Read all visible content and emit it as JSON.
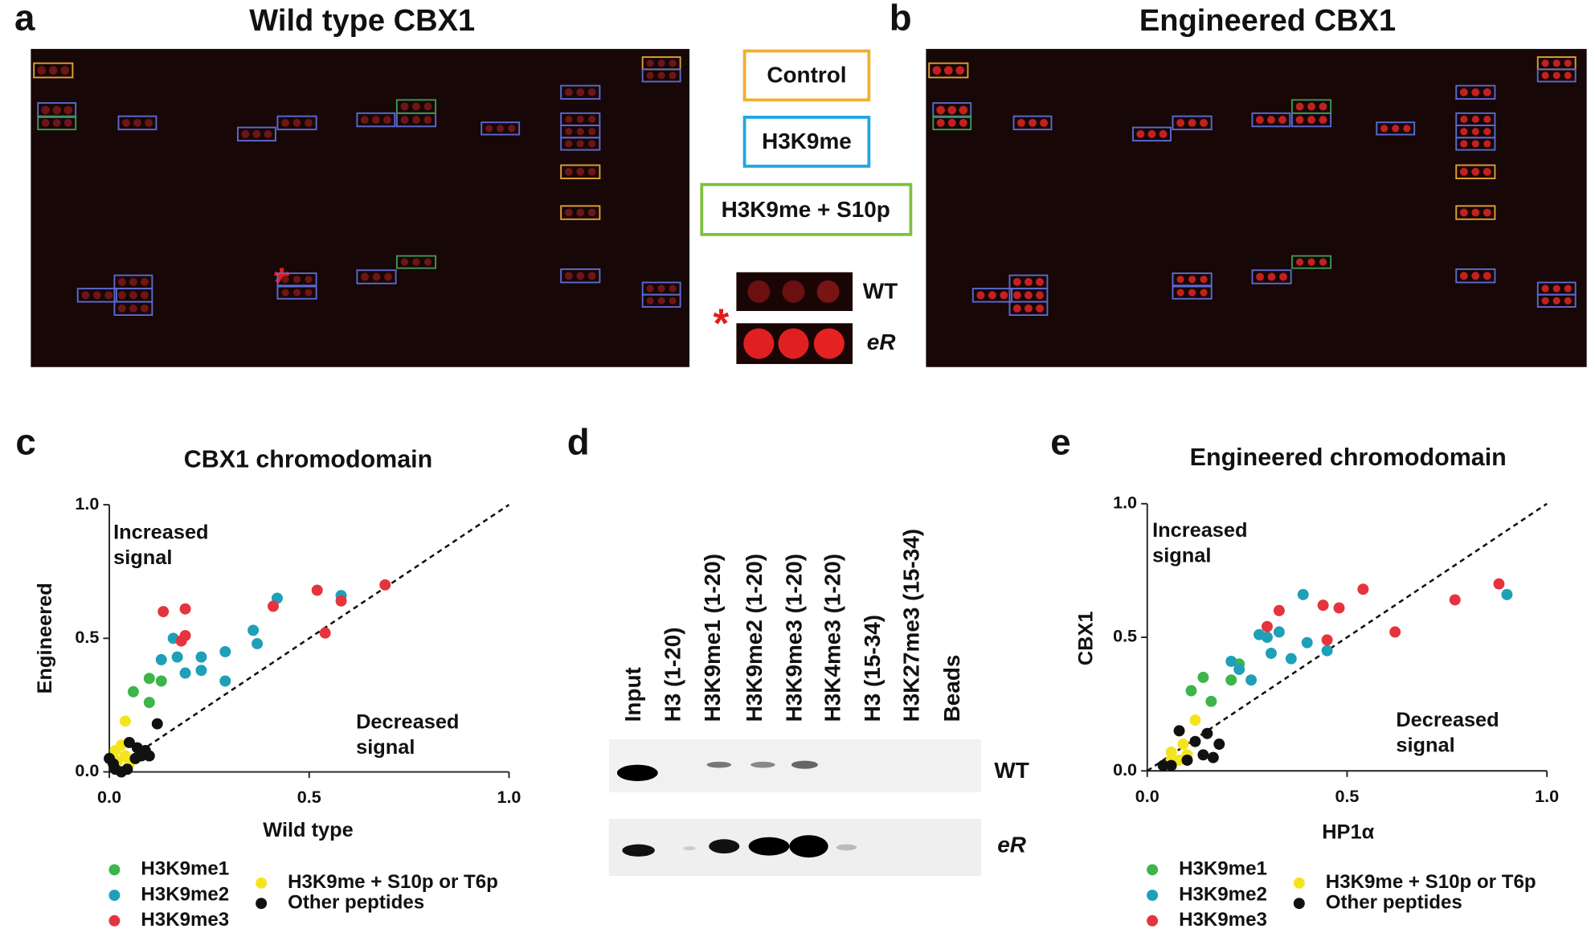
{
  "panel_a": {
    "label": "a",
    "title": "Wild type CBX1"
  },
  "panel_b": {
    "label": "b",
    "title": "Engineered CBX1"
  },
  "key": {
    "boxes": [
      "Control",
      "H3K9me",
      "H3K9me + S10p"
    ],
    "insets": [
      "WT",
      "eR"
    ]
  },
  "panel_d": {
    "label": "d",
    "lanes": [
      "Input",
      "H3 (1-20)",
      "H3K9me1 (1-20)",
      "H3K9me2 (1-20)",
      "H3K9me3 (1-20)",
      "H3K4me3 (1-20)",
      "H3 (15-34)",
      "H3K27me3 (15-34)",
      "Beads"
    ],
    "rows": [
      "WT",
      "eR"
    ]
  },
  "chart_data": [
    {
      "type": "scatter",
      "panel_label": "c",
      "title": "CBX1 chromodomain",
      "xlabel": "Wild type",
      "ylabel": "Engineered",
      "annotations": [
        [
          "Increased",
          "signal"
        ],
        [
          "Decreased",
          "signal"
        ]
      ],
      "xlim": [
        0,
        1
      ],
      "ylim": [
        0,
        1
      ],
      "xticks": [
        {
          "value": 0,
          "label": "0.0"
        },
        {
          "value": 0.5,
          "label": "0.5"
        },
        {
          "value": 1,
          "label": "1.0"
        }
      ],
      "yticks": [
        {
          "value": 0,
          "label": "0.0"
        },
        {
          "value": 0.5,
          "label": "0.5"
        },
        {
          "value": 1,
          "label": "1.0"
        }
      ],
      "series": [
        {
          "name": "H3K9me1",
          "color": "#3cb54a",
          "x": [
            0.06,
            0.1,
            0.13,
            0.1
          ],
          "y": [
            0.3,
            0.35,
            0.34,
            0.26
          ]
        },
        {
          "name": "H3K9me2",
          "color": "#1f9fb8",
          "x": [
            0.16,
            0.17,
            0.13,
            0.23,
            0.23,
            0.29,
            0.29,
            0.36,
            0.37,
            0.42,
            0.58,
            0.19
          ],
          "y": [
            0.5,
            0.43,
            0.42,
            0.43,
            0.38,
            0.45,
            0.34,
            0.53,
            0.48,
            0.65,
            0.66,
            0.37
          ]
        },
        {
          "name": "H3K9me3",
          "color": "#e5343d",
          "x": [
            0.135,
            0.19,
            0.18,
            0.19,
            0.41,
            0.52,
            0.54,
            0.58,
            0.69
          ],
          "y": [
            0.6,
            0.61,
            0.49,
            0.51,
            0.62,
            0.68,
            0.52,
            0.64,
            0.7
          ]
        },
        {
          "name": "H3K9me + S10p or T6p",
          "color": "#f4e41e",
          "x": [
            0.04,
            0.03,
            0.02,
            0.05,
            0.04,
            0.015
          ],
          "y": [
            0.19,
            0.1,
            0.04,
            0.03,
            0.06,
            0.08
          ]
        },
        {
          "name": "Other peptides",
          "color": "#111111",
          "x": [
            0.12,
            0.01,
            0.08,
            0.1,
            0.07,
            0.05,
            0.015,
            0.045,
            0.065,
            0,
            0.09,
            0.03
          ],
          "y": [
            0.18,
            0.03,
            0.06,
            0.06,
            0.09,
            0.11,
            0.01,
            0.01,
            0.05,
            0.05,
            0.08,
            0
          ]
        }
      ]
    },
    {
      "type": "scatter",
      "panel_label": "e",
      "title": "Engineered chromodomain",
      "xlabel": "HP1α",
      "ylabel": "CBX1",
      "annotations": [
        [
          "Increased",
          "signal"
        ],
        [
          "Decreased",
          "signal"
        ]
      ],
      "xlim": [
        0,
        1
      ],
      "ylim": [
        0,
        1
      ],
      "xticks": [
        {
          "value": 0,
          "label": "0.0"
        },
        {
          "value": 0.5,
          "label": "0.5"
        },
        {
          "value": 1,
          "label": "1.0"
        }
      ],
      "yticks": [
        {
          "value": 0,
          "label": "0.0"
        },
        {
          "value": 0.5,
          "label": "0.5"
        },
        {
          "value": 1,
          "label": "1.0"
        }
      ],
      "series": [
        {
          "name": "H3K9me1",
          "color": "#3cb54a",
          "x": [
            0.11,
            0.14,
            0.16,
            0.21,
            0.23
          ],
          "y": [
            0.3,
            0.35,
            0.26,
            0.34,
            0.4
          ]
        },
        {
          "name": "H3K9me2",
          "color": "#1f9fb8",
          "x": [
            0.21,
            0.23,
            0.28,
            0.3,
            0.31,
            0.26,
            0.33,
            0.36,
            0.39,
            0.4,
            0.45,
            0.9
          ],
          "y": [
            0.41,
            0.38,
            0.51,
            0.5,
            0.44,
            0.34,
            0.52,
            0.42,
            0.66,
            0.48,
            0.45,
            0.66
          ]
        },
        {
          "name": "H3K9me3",
          "color": "#e5343d",
          "x": [
            0.33,
            0.44,
            0.48,
            0.45,
            0.54,
            0.62,
            0.77,
            0.88,
            0.3
          ],
          "y": [
            0.6,
            0.62,
            0.61,
            0.49,
            0.68,
            0.52,
            0.64,
            0.7,
            0.54
          ]
        },
        {
          "name": "H3K9me + S10p or T6p",
          "color": "#f4e41e",
          "x": [
            0.12,
            0.06,
            0.08,
            0.1,
            0.09,
            0.06
          ],
          "y": [
            0.19,
            0.04,
            0.04,
            0.06,
            0.1,
            0.07
          ]
        },
        {
          "name": "Other peptides",
          "color": "#111111",
          "x": [
            0.08,
            0.15,
            0.18,
            0.12,
            0.04,
            0.1,
            0.14,
            0.06,
            0.165
          ],
          "y": [
            0.15,
            0.14,
            0.1,
            0.11,
            0.02,
            0.04,
            0.06,
            0.02,
            0.05
          ]
        }
      ]
    }
  ]
}
